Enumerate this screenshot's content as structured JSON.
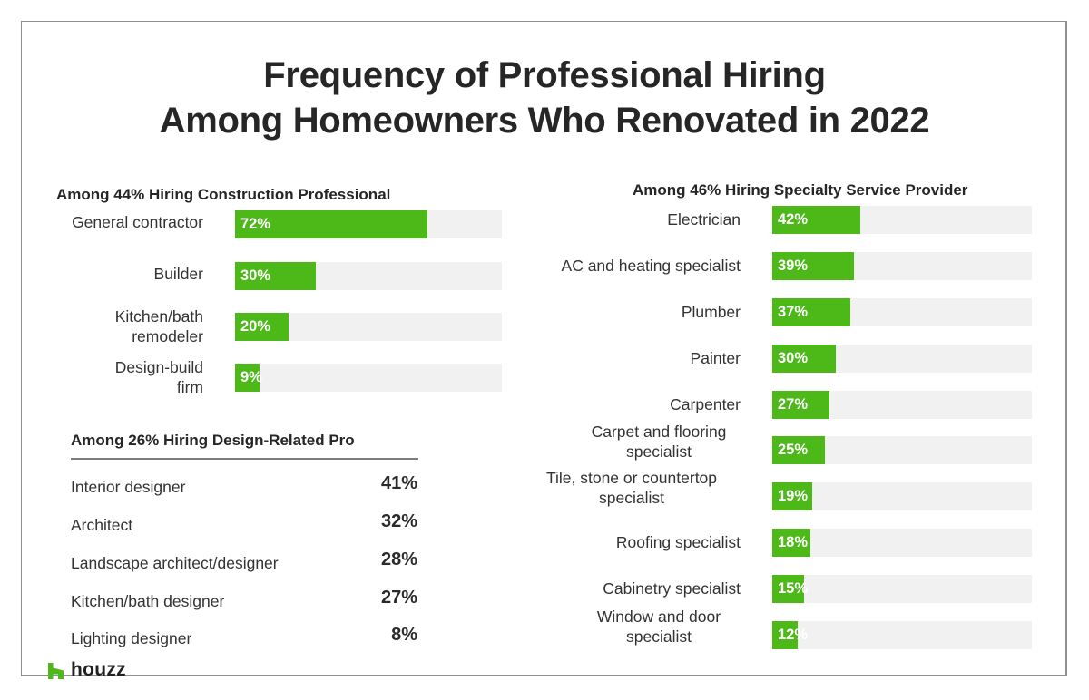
{
  "title": {
    "line1": "Frequency of Professional Hiring",
    "line2": "Among Homeowners Who Renovated in 2022"
  },
  "colors": {
    "bar": "#4cb919",
    "track": "#f1f1f1",
    "text": "#2b2b2b",
    "brand": "#4cb919"
  },
  "construction": {
    "heading": "Among 44% Hiring Construction Professional",
    "items": [
      {
        "label": "General contractor",
        "value": 72,
        "display": "72%"
      },
      {
        "label": "Builder",
        "value": 30,
        "display": "30%"
      },
      {
        "label": "Kitchen/bath remodeler",
        "value": 20,
        "display": "20%"
      },
      {
        "label": "Design-build firm",
        "value": 9,
        "display": "9%"
      }
    ]
  },
  "design": {
    "heading": "Among 26% Hiring Design-Related Pro",
    "items": [
      {
        "label": "Interior designer",
        "display": "41%"
      },
      {
        "label": "Architect",
        "display": "32%"
      },
      {
        "label": "Landscape architect/designer",
        "display": "28%"
      },
      {
        "label": "Kitchen/bath designer",
        "display": "27%"
      },
      {
        "label": "Lighting designer",
        "display": "8%"
      }
    ]
  },
  "specialty": {
    "heading": "Among 46% Hiring Specialty Service Provider",
    "items": [
      {
        "label": "Electrician",
        "value": 42,
        "display": "42%"
      },
      {
        "label": "AC and heating specialist",
        "value": 39,
        "display": "39%"
      },
      {
        "label": "Plumber",
        "value": 37,
        "display": "37%"
      },
      {
        "label": "Painter",
        "value": 30,
        "display": "30%"
      },
      {
        "label": "Carpenter",
        "value": 27,
        "display": "27%"
      },
      {
        "label": "Carpet and flooring specialist",
        "value": 25,
        "display": "25%"
      },
      {
        "label": "Tile, stone or countertop specialist",
        "value": 19,
        "display": "19%"
      },
      {
        "label": "Roofing specialist",
        "value": 18,
        "display": "18%"
      },
      {
        "label": "Cabinetry specialist",
        "value": 15,
        "display": "15%"
      },
      {
        "label": "Window and door specialist",
        "value": 12,
        "display": "12%"
      }
    ]
  },
  "logo": {
    "text": "houzz"
  },
  "chart_data": [
    {
      "type": "bar",
      "orientation": "horizontal",
      "title": "Among 44% Hiring Construction Professional",
      "categories": [
        "General contractor",
        "Builder",
        "Kitchen/bath remodeler",
        "Design-build firm"
      ],
      "values": [
        72,
        30,
        20,
        9
      ],
      "unit": "%",
      "xlim": [
        0,
        100
      ],
      "grid": false,
      "legend": null
    },
    {
      "type": "table",
      "title": "Among 26% Hiring Design-Related Pro",
      "categories": [
        "Interior designer",
        "Architect",
        "Landscape architect/designer",
        "Kitchen/bath designer",
        "Lighting designer"
      ],
      "values": [
        41,
        32,
        28,
        27,
        8
      ],
      "unit": "%"
    },
    {
      "type": "bar",
      "orientation": "horizontal",
      "title": "Among 46% Hiring Specialty Service Provider",
      "categories": [
        "Electrician",
        "AC and heating specialist",
        "Plumber",
        "Painter",
        "Carpenter",
        "Carpet and flooring specialist",
        "Tile, stone or countertop specialist",
        "Roofing specialist",
        "Cabinetry specialist",
        "Window and door specialist"
      ],
      "values": [
        42,
        39,
        37,
        30,
        27,
        25,
        19,
        18,
        15,
        12
      ],
      "unit": "%",
      "grid": false,
      "legend": null
    }
  ],
  "figure_title": "Frequency of Professional Hiring Among Homeowners Who Renovated in 2022"
}
